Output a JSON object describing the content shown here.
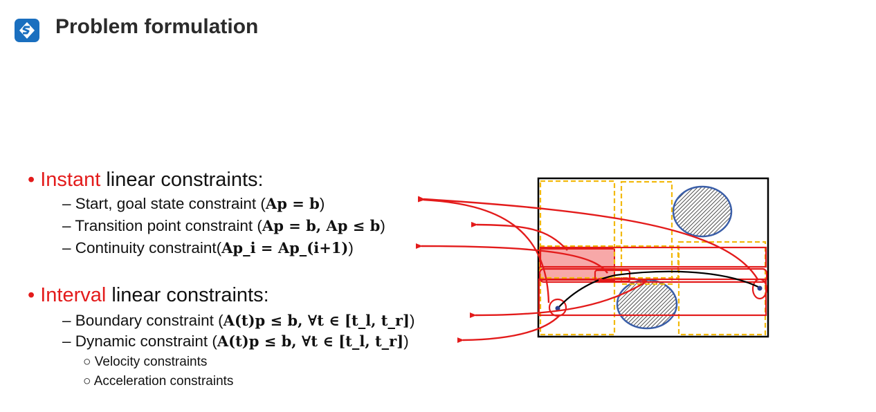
{
  "header": {
    "title": "Problem formulation",
    "logo_icon": "brand-s-logo-icon"
  },
  "bullets": {
    "instant": {
      "highlight": "Instant",
      "rest": " linear  constraints:",
      "items": [
        {
          "text": "Start, goal state constraint (",
          "math": "Ap = b",
          "close": ")"
        },
        {
          "text": "Transition point constraint (",
          "math": "Ap = b, Ap ≤ b",
          "close": ")"
        },
        {
          "text": "Continuity constraint(",
          "math": "Ap_i = Ap_(i+1)",
          "close": ")"
        }
      ]
    },
    "interval": {
      "highlight": "Interval",
      "rest": " linear constraints:",
      "items": [
        {
          "text": "Boundary constraint (",
          "math": "A(t)p ≤ b, ∀t ∈ [t_l, t_r]",
          "close": ")"
        },
        {
          "text": "Dynamic constraint (",
          "math": "A(t)p ≤ b, ∀t ∈ [t_l, t_r]",
          "close": ")"
        }
      ],
      "subitems": [
        "Velocity constraints",
        "Acceleration constraints"
      ]
    }
  },
  "symbols": {
    "dash": "–",
    "bullet": "•",
    "circle": "○"
  },
  "colors": {
    "accent_red": "#e31b1b",
    "box_yellow": "#f2b90c",
    "obstacle_blue": "#3a5ea8",
    "logo_blue": "#1a6fbf"
  }
}
